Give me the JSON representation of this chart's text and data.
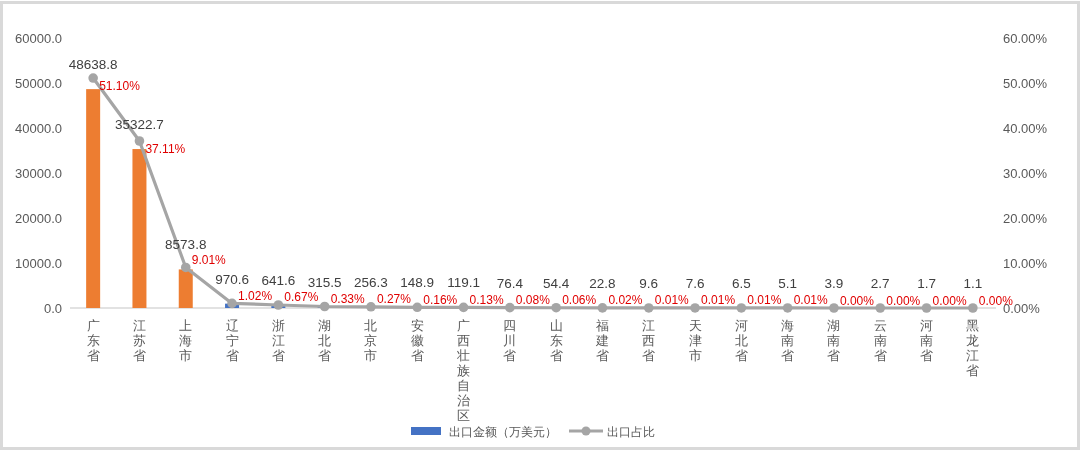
{
  "chart_data": {
    "type": "bar",
    "categories": [
      "广东省",
      "江苏省",
      "上海市",
      "辽宁省",
      "浙江省",
      "湖北省",
      "北京市",
      "安徽省",
      "广西壮族自治区",
      "四川省",
      "山东省",
      "福建省",
      "江西省",
      "天津市",
      "河北省",
      "海南省",
      "湖南省",
      "云南省",
      "河南省",
      "黑龙江省"
    ],
    "ylim": [
      0,
      60000
    ],
    "yticks": [
      {
        "value": 0,
        "label": "0.0"
      },
      {
        "value": 10000,
        "label": "10000.0"
      },
      {
        "value": 20000,
        "label": "20000.0"
      },
      {
        "value": 30000,
        "label": "30000.0"
      },
      {
        "value": 40000,
        "label": "40000.0"
      },
      {
        "value": 50000,
        "label": "50000.0"
      },
      {
        "value": 60000,
        "label": "60000.0"
      }
    ],
    "y2lim": [
      0,
      60
    ],
    "y2ticks": [
      {
        "value": 0,
        "label": "0.00%"
      },
      {
        "value": 10,
        "label": "10.00%"
      },
      {
        "value": 20,
        "label": "20.00%"
      },
      {
        "value": 30,
        "label": "30.00%"
      },
      {
        "value": 40,
        "label": "40.00%"
      },
      {
        "value": 50,
        "label": "50.00%"
      },
      {
        "value": 60,
        "label": "60.00%"
      }
    ],
    "legend": "bottom",
    "marker": "circle",
    "series": [
      {
        "name": "出口金额（万美元）",
        "color": "#4472c4",
        "colors": [
          "#ed7d31",
          "#ed7d31",
          "#ed7d31",
          "#4472c4",
          "#4472c4",
          "#4472c4",
          "#4472c4",
          "#4472c4",
          "#4472c4",
          "#4472c4",
          "#4472c4",
          "#4472c4",
          "#4472c4",
          "#4472c4",
          "#4472c4",
          "#4472c4",
          "#4472c4",
          "#4472c4",
          "#4472c4",
          "#4472c4"
        ],
        "values": [
          48638.8,
          35322.7,
          8573.8,
          970.6,
          641.6,
          315.5,
          256.3,
          148.9,
          119.1,
          76.4,
          54.4,
          22.8,
          9.6,
          7.6,
          6.5,
          5.1,
          3.9,
          2.7,
          1.7,
          1.1
        ],
        "value_labels": [
          "48638.8",
          "35322.7",
          "8573.8",
          "970.6",
          "641.6",
          "315.5",
          "256.3",
          "148.9",
          "119.1",
          "76.4",
          "54.4",
          "22.8",
          "9.6",
          "7.6",
          "6.5",
          "5.1",
          "3.9",
          "2.7",
          "1.7",
          "1.1"
        ]
      },
      {
        "name": "出口占比",
        "type": "line",
        "axis": "y2",
        "color": "#a5a5a5",
        "values": [
          51.1,
          37.11,
          9.01,
          1.02,
          0.67,
          0.33,
          0.27,
          0.16,
          0.13,
          0.08,
          0.06,
          0.02,
          0.01,
          0.01,
          0.01,
          0.01,
          0.0,
          0.0,
          0.0,
          0.0
        ],
        "value_labels": [
          "51.10%",
          "37.11%",
          "9.01%",
          "1.02%",
          "0.67%",
          "0.33%",
          "0.27%",
          "0.16%",
          "0.13%",
          "0.08%",
          "0.06%",
          "0.02%",
          "0.01%",
          "0.01%",
          "0.01%",
          "0.01%",
          "0.00%",
          "0.00%",
          "0.00%",
          "0.00%"
        ]
      }
    ]
  }
}
